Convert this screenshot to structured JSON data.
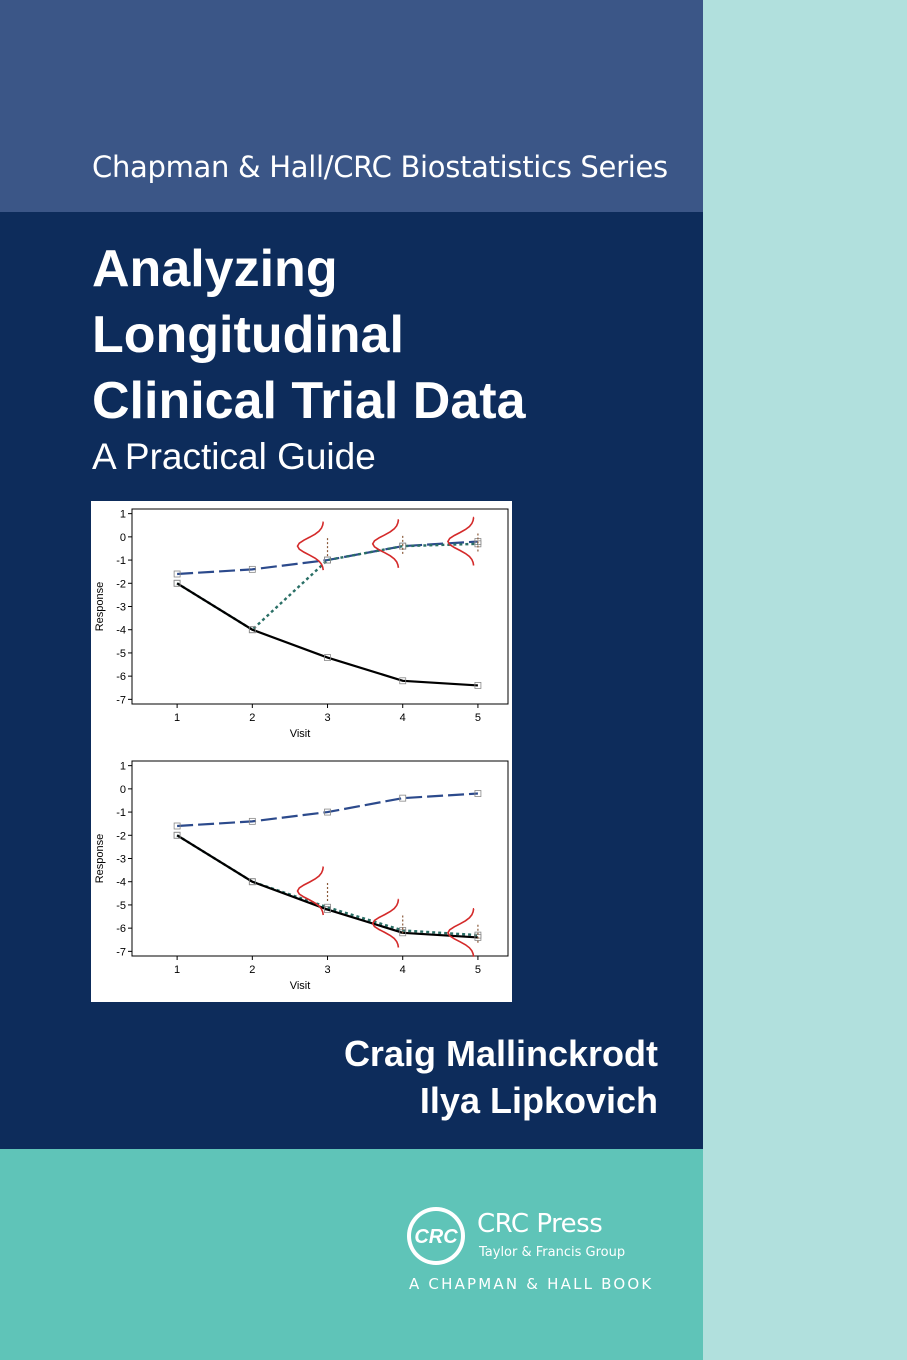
{
  "cover": {
    "series": "Chapman & Hall/CRC Biostatistics Series",
    "title_lines": [
      "Analyzing",
      "Longitudinal",
      "Clinical Trial Data"
    ],
    "subtitle": "A Practical Guide",
    "authors": [
      "Craig Mallinckrodt",
      "Ilya Lipkovich"
    ],
    "publisher": {
      "logo_text": "CRC",
      "name": "CRC Press",
      "tagline": "Taylor & Francis Group",
      "imprint": "A CHAPMAN & HALL BOOK"
    },
    "colors": {
      "top_band": "#3b5687",
      "main_band": "#0d2c5b",
      "bottom_band": "#5fc4b8",
      "right_band": "#b1e0dd"
    }
  },
  "chart_data": [
    {
      "type": "line",
      "xlabel": "Visit",
      "ylabel": "Response",
      "x": [
        1,
        2,
        3,
        4,
        5
      ],
      "xlim": [
        0.4,
        5.4
      ],
      "ylim": [
        -7.2,
        1.2
      ],
      "yticks": [
        1,
        0,
        -1,
        -2,
        -3,
        -4,
        -5,
        -6,
        -7
      ],
      "xticks": [
        1,
        2,
        3,
        4,
        5
      ],
      "series": [
        {
          "style": "long-dash",
          "color": "#2c4a8c",
          "values": [
            -1.6,
            -1.4,
            -1.0,
            -0.4,
            -0.2
          ]
        },
        {
          "style": "dotted",
          "color": "#2a6f66",
          "values": [
            -2.0,
            -4.0,
            -1.0,
            -0.4,
            -0.3
          ]
        },
        {
          "style": "solid",
          "color": "#000000",
          "values": [
            -2.0,
            -4.0,
            -5.2,
            -6.2,
            -6.4
          ]
        }
      ],
      "density_curves_at": [
        3,
        4,
        5
      ],
      "density_centers": [
        -0.4,
        -0.3,
        -0.2
      ]
    },
    {
      "type": "line",
      "xlabel": "Visit",
      "ylabel": "Response",
      "x": [
        1,
        2,
        3,
        4,
        5
      ],
      "xlim": [
        0.4,
        5.4
      ],
      "ylim": [
        -7.2,
        1.2
      ],
      "yticks": [
        1,
        0,
        -1,
        -2,
        -3,
        -4,
        -5,
        -6,
        -7
      ],
      "xticks": [
        1,
        2,
        3,
        4,
        5
      ],
      "series": [
        {
          "style": "long-dash",
          "color": "#2c4a8c",
          "values": [
            -1.6,
            -1.4,
            -1.0,
            -0.4,
            -0.2
          ]
        },
        {
          "style": "dotted",
          "color": "#2a6f66",
          "values": [
            -2.0,
            -4.0,
            -5.1,
            -6.1,
            -6.3
          ]
        },
        {
          "style": "solid",
          "color": "#000000",
          "values": [
            -2.0,
            -4.0,
            -5.2,
            -6.2,
            -6.4
          ]
        }
      ],
      "density_curves_at": [
        3,
        4,
        5
      ],
      "density_centers": [
        -4.4,
        -5.8,
        -6.2
      ]
    }
  ]
}
